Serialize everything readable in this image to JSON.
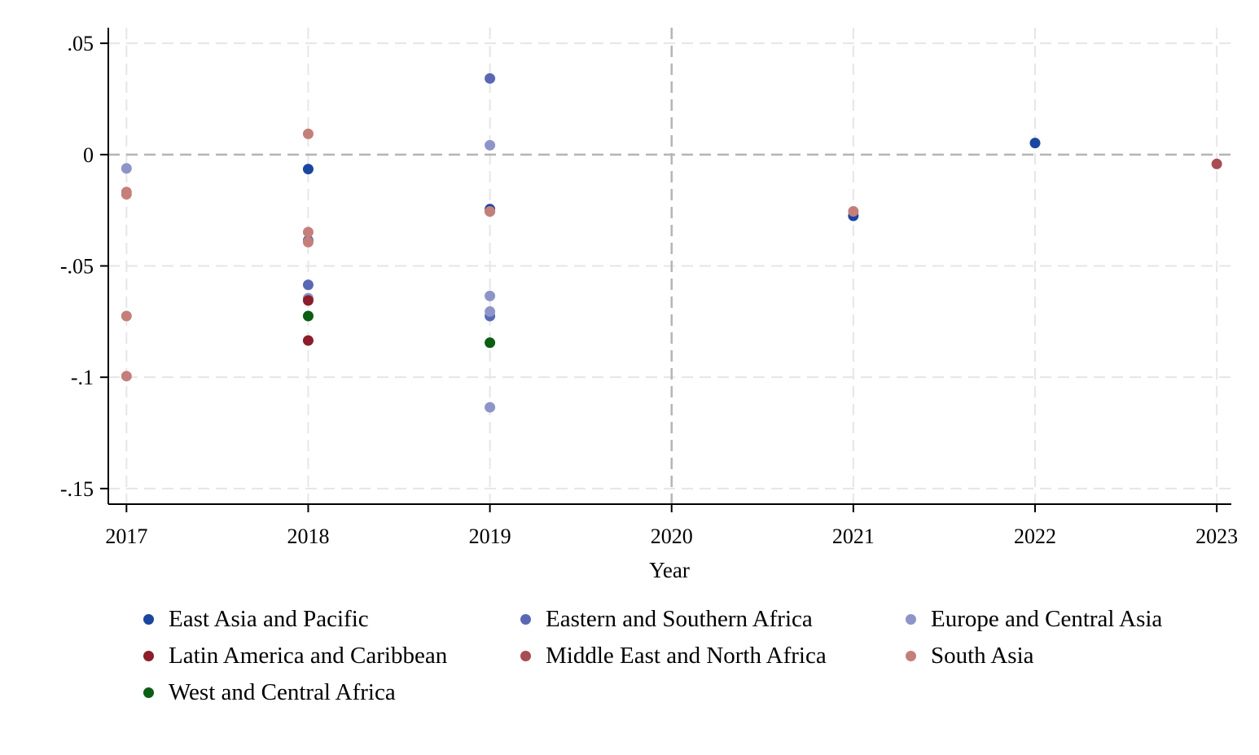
{
  "chart_data": {
    "type": "scatter",
    "title": "",
    "xlabel": "Year",
    "ylabel": "",
    "xlim": [
      2016.9,
      2023.08
    ],
    "ylim": [
      -0.157,
      0.057
    ],
    "x_ticks": [
      2017,
      2018,
      2019,
      2020,
      2021,
      2022,
      2023
    ],
    "x_tick_labels": [
      "2017",
      "2018",
      "2019",
      "2020",
      "2021",
      "2022",
      "2023"
    ],
    "y_ticks": [
      0.05,
      0,
      -0.05,
      -0.1,
      -0.15
    ],
    "y_tick_labels": [
      ".05",
      "0",
      "-.05",
      "-.1",
      "-.15"
    ],
    "grid": true,
    "reference_lines": {
      "y": 0,
      "x": 2020
    },
    "legend_position": "bottom",
    "series": [
      {
        "name": "East Asia and Pacific",
        "color": "#1a46a0",
        "points": [
          [
            2018,
            -0.0065
          ],
          [
            2019,
            -0.0245
          ],
          [
            2019,
            -0.0255
          ],
          [
            2021,
            -0.0275
          ],
          [
            2022,
            0.0052
          ]
        ]
      },
      {
        "name": "Eastern and Southern Africa",
        "color": "#5a68b4",
        "points": [
          [
            2018,
            -0.0385
          ],
          [
            2018,
            -0.0585
          ],
          [
            2019,
            0.0342
          ],
          [
            2019,
            -0.0725
          ]
        ]
      },
      {
        "name": "Europe and Central Asia",
        "color": "#8d95c8",
        "points": [
          [
            2017,
            -0.0062
          ],
          [
            2018,
            -0.0645
          ],
          [
            2019,
            0.0042
          ],
          [
            2019,
            -0.0635
          ],
          [
            2019,
            -0.0705
          ],
          [
            2019,
            -0.1135
          ]
        ]
      },
      {
        "name": "Latin America and Caribbean",
        "color": "#8b1e2a",
        "points": [
          [
            2018,
            -0.0655
          ],
          [
            2018,
            -0.0835
          ]
        ]
      },
      {
        "name": "Middle East and North Africa",
        "color": "#a74d53",
        "points": [
          [
            2023,
            -0.0042
          ]
        ]
      },
      {
        "name": "South Asia",
        "color": "#c57f7b",
        "points": [
          [
            2017,
            -0.0168
          ],
          [
            2017,
            -0.0178
          ],
          [
            2017,
            -0.0725
          ],
          [
            2017,
            -0.0995
          ],
          [
            2018,
            0.0093
          ],
          [
            2018,
            -0.0348
          ],
          [
            2018,
            -0.0393
          ],
          [
            2019,
            -0.0255
          ],
          [
            2021,
            -0.0255
          ]
        ]
      },
      {
        "name": "West and Central Africa",
        "color": "#0b5e14",
        "points": [
          [
            2018,
            -0.0725
          ],
          [
            2019,
            -0.0845
          ]
        ]
      }
    ]
  }
}
